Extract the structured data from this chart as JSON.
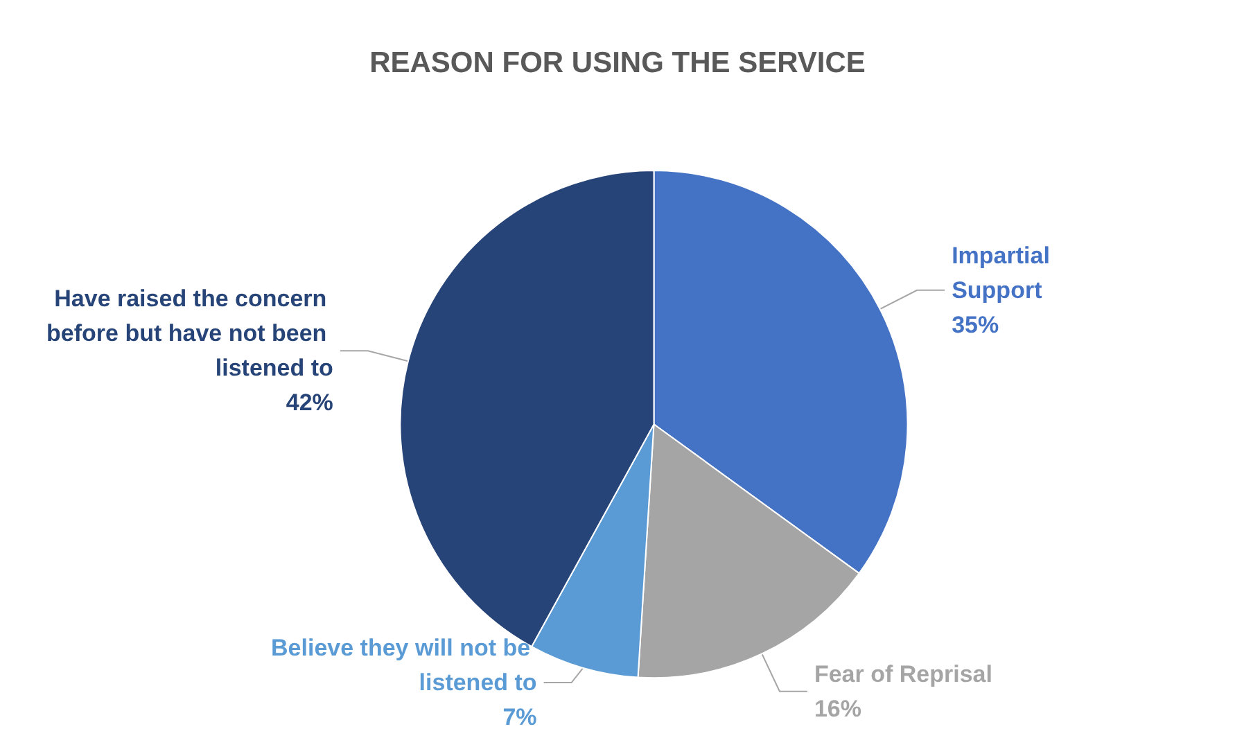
{
  "chart_data": {
    "type": "pie",
    "title": "REASON FOR USING THE SERVICE",
    "categories": [
      "Impartial Support",
      "Fear of Reprisal",
      "Believe they will not be listened to",
      "Have raised the concern before but have not been listened to"
    ],
    "values": [
      35,
      16,
      7,
      42
    ],
    "colors": [
      "#4472c4",
      "#a5a5a5",
      "#5b9bd5",
      "#264478"
    ],
    "value_labels": [
      "35%",
      "16%",
      "7%",
      "42%"
    ],
    "legend": false
  }
}
